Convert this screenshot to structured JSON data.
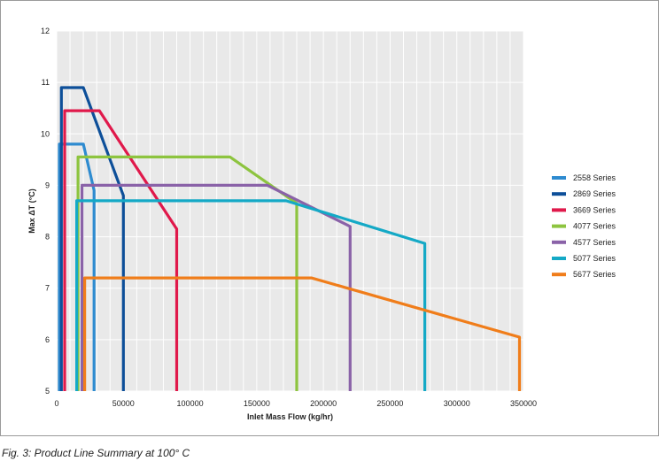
{
  "caption": "Fig. 3: Product Line Summary at 100° C",
  "chart_data": {
    "type": "line",
    "xlabel": "Inlet Mass Flow (kg/hr)",
    "ylabel": "Max ΔT (°C)",
    "xlim": [
      0,
      350000
    ],
    "ylim": [
      5,
      12
    ],
    "xticks": [
      0,
      50000,
      100000,
      150000,
      200000,
      250000,
      300000,
      350000
    ],
    "yticks": [
      5,
      6,
      7,
      8,
      9,
      10,
      11,
      12
    ],
    "grid": true,
    "legend_position": "right",
    "series": [
      {
        "name": "2558 Series",
        "color": "#2e8bd0",
        "points": [
          [
            2000,
            5
          ],
          [
            2000,
            9.8
          ],
          [
            20000,
            9.8
          ],
          [
            28000,
            8.9
          ],
          [
            28000,
            5
          ]
        ]
      },
      {
        "name": "2869 Series",
        "color": "#0d4f99",
        "points": [
          [
            3500,
            5
          ],
          [
            3500,
            10.9
          ],
          [
            20000,
            10.9
          ],
          [
            50000,
            8.8
          ],
          [
            50000,
            5
          ]
        ]
      },
      {
        "name": "3669 Series",
        "color": "#e0194b",
        "points": [
          [
            6000,
            5
          ],
          [
            6000,
            10.45
          ],
          [
            32000,
            10.45
          ],
          [
            90000,
            8.15
          ],
          [
            90000,
            5
          ]
        ]
      },
      {
        "name": "4077 Series",
        "color": "#8dc43f",
        "points": [
          [
            16000,
            5
          ],
          [
            16000,
            9.55
          ],
          [
            130000,
            9.55
          ],
          [
            180000,
            8.65
          ],
          [
            180000,
            5
          ]
        ]
      },
      {
        "name": "4577 Series",
        "color": "#8a62a8",
        "points": [
          [
            19000,
            5
          ],
          [
            19000,
            9.0
          ],
          [
            158000,
            9.0
          ],
          [
            220000,
            8.2
          ],
          [
            220000,
            5
          ]
        ]
      },
      {
        "name": "5077 Series",
        "color": "#14a9c6",
        "points": [
          [
            15000,
            5
          ],
          [
            15000,
            8.7
          ],
          [
            172000,
            8.7
          ],
          [
            276000,
            7.87
          ],
          [
            276000,
            5
          ]
        ]
      },
      {
        "name": "5677 Series",
        "color": "#f07d1a",
        "points": [
          [
            21000,
            5
          ],
          [
            21000,
            7.2
          ],
          [
            191000,
            7.2
          ],
          [
            347000,
            6.05
          ],
          [
            347000,
            5
          ]
        ]
      }
    ]
  }
}
